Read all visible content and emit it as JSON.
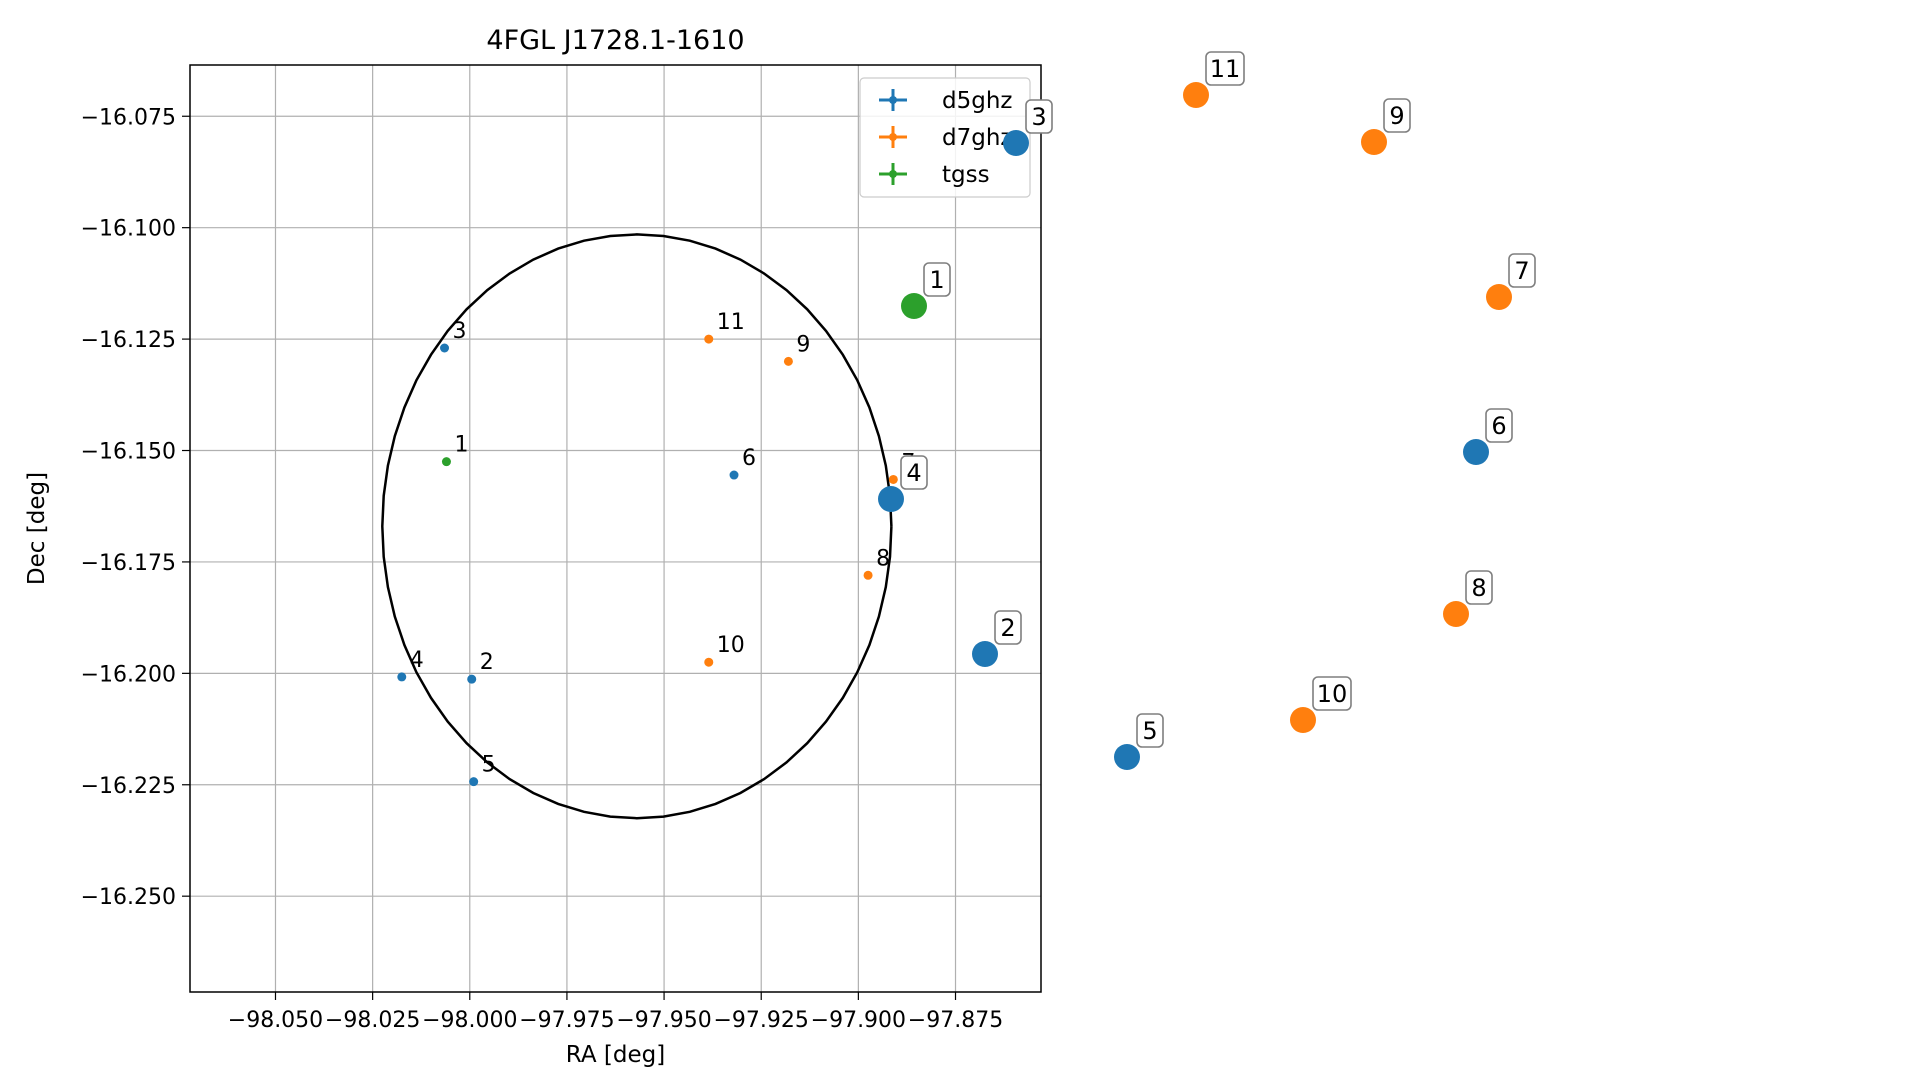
{
  "chart_data": [
    {
      "type": "scatter",
      "title": "4FGL J1728.1-1610",
      "xlabel": "RA [deg]",
      "ylabel": "Dec [deg]",
      "xlim": [
        -98.072,
        -97.853
      ],
      "ylim": [
        -16.2715,
        -16.0635
      ],
      "x_ticks": [
        -98.05,
        -98.025,
        -98.0,
        -97.975,
        -97.95,
        -97.925,
        -97.9,
        -97.875
      ],
      "x_tick_labels": [
        "−98.050",
        "−98.025",
        "−98.000",
        "−97.975",
        "−97.950",
        "−97.925",
        "−97.900",
        "−97.875"
      ],
      "y_ticks": [
        -16.075,
        -16.1,
        -16.125,
        -16.15,
        -16.175,
        -16.2,
        -16.225,
        -16.25
      ],
      "y_tick_labels": [
        "−16.075",
        "−16.100",
        "−16.125",
        "−16.150",
        "−16.175",
        "−16.200",
        "−16.225",
        "−16.250"
      ],
      "grid": true,
      "legend_position": "top-right",
      "circle": {
        "center": [
          -97.957,
          -16.167
        ],
        "radius": 0.0655
      },
      "series": [
        {
          "name": "d5ghz",
          "color": "#1f77b4",
          "points": [
            {
              "label": "2",
              "x": -97.9995,
              "y": -16.2013
            },
            {
              "label": "3",
              "x": -98.0065,
              "y": -16.127
            },
            {
              "label": "4",
              "x": -98.0175,
              "y": -16.2008
            },
            {
              "label": "5",
              "x": -97.999,
              "y": -16.2243
            },
            {
              "label": "6",
              "x": -97.932,
              "y": -16.1555
            }
          ]
        },
        {
          "name": "d7ghz",
          "color": "#ff7f0e",
          "points": [
            {
              "label": "7",
              "x": -97.891,
              "y": -16.1565
            },
            {
              "label": "8",
              "x": -97.8975,
              "y": -16.178
            },
            {
              "label": "9",
              "x": -97.918,
              "y": -16.13
            },
            {
              "label": "10",
              "x": -97.9385,
              "y": -16.1975
            },
            {
              "label": "11",
              "x": -97.9385,
              "y": -16.125
            }
          ]
        },
        {
          "name": "tgss",
          "color": "#2ca02c",
          "points": [
            {
              "label": "1",
              "x": -98.006,
              "y": -16.1525
            }
          ]
        }
      ]
    },
    {
      "type": "scatter",
      "grid": false,
      "series": [
        {
          "color": "#1f77b4",
          "points": [
            {
              "label": "2",
              "x": 985,
              "y": 654
            },
            {
              "label": "3",
              "x": 1016,
              "y": 143
            },
            {
              "label": "4",
              "x": 891,
              "y": 499
            },
            {
              "label": "5",
              "x": 1127,
              "y": 757
            },
            {
              "label": "6",
              "x": 1476,
              "y": 452
            }
          ]
        },
        {
          "color": "#ff7f0e",
          "points": [
            {
              "label": "7",
              "x": 1499,
              "y": 297
            },
            {
              "label": "8",
              "x": 1456,
              "y": 614
            },
            {
              "label": "9",
              "x": 1374,
              "y": 142
            },
            {
              "label": "10",
              "x": 1303,
              "y": 720
            },
            {
              "label": "11",
              "x": 1196,
              "y": 95
            }
          ]
        },
        {
          "color": "#2ca02c",
          "points": [
            {
              "label": "1",
              "x": 914,
              "y": 306
            }
          ]
        }
      ]
    }
  ]
}
